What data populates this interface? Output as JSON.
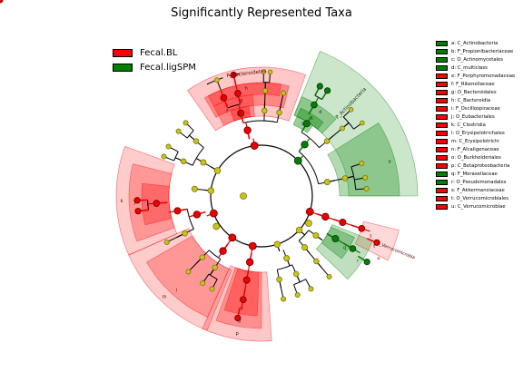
{
  "title": "Significantly Represented Taxa",
  "groups": [
    {
      "name": "Fecal.BL",
      "color": "#ff0000"
    },
    {
      "name": "Fecal.ligSPM",
      "color": "#008000"
    }
  ],
  "side_legend": [
    {
      "text": "a: C_Actinobacteria",
      "group": 1
    },
    {
      "text": "b: F_Propionibacteriaceae",
      "group": 1
    },
    {
      "text": "c: O_Actinomycetales",
      "group": 1
    },
    {
      "text": "d: C_multiclass",
      "group": 1
    },
    {
      "text": "e: F_Porphyromonadaceae",
      "group": 0
    },
    {
      "text": "f: F_Rikenellaceae",
      "group": 0
    },
    {
      "text": "g: O_Bacteroidales",
      "group": 0
    },
    {
      "text": "h: C_Bacteroidia",
      "group": 0
    },
    {
      "text": "i: F_Oscillospiraceae",
      "group": 0
    },
    {
      "text": "j: O_Eubacteriales",
      "group": 0
    },
    {
      "text": "k: C_Clostridia",
      "group": 0
    },
    {
      "text": "l: O_Erysipelotrichales",
      "group": 0
    },
    {
      "text": "m: C_Erysipelotrichi",
      "group": 0
    },
    {
      "text": "n: F_Alcaligenaceae",
      "group": 0
    },
    {
      "text": "o: O_Burkholderiales",
      "group": 0
    },
    {
      "text": "p: C_Betaproteobacteria",
      "group": 0
    },
    {
      "text": "q: F_Moraxellaceae",
      "group": 1
    },
    {
      "text": "r: O_Pseudomonadales",
      "group": 1
    },
    {
      "text": "s: F_Akkermansiaceae",
      "group": 0
    },
    {
      "text": "t: O_Verrucomicrobiales",
      "group": 0
    },
    {
      "text": "u: C_Verrucomicrobiae",
      "group": 0
    }
  ],
  "sector_labels": [
    {
      "text": "P_Bacteroidetes",
      "group": 0
    },
    {
      "text": "P_Actinobacteria",
      "group": 1
    },
    {
      "text": "P_Verrucomicrobia",
      "group": 0
    },
    {
      "text": "h",
      "group": 0
    },
    {
      "text": "g",
      "group": 0
    },
    {
      "text": "f",
      "group": 0
    },
    {
      "text": "e",
      "group": 0
    },
    {
      "text": "d",
      "group": 1
    },
    {
      "text": "c",
      "group": 1
    },
    {
      "text": "b",
      "group": 1
    },
    {
      "text": "a",
      "group": 1
    },
    {
      "text": "k",
      "group": 0
    },
    {
      "text": "j",
      "group": 0
    },
    {
      "text": "i",
      "group": 0
    },
    {
      "text": "m",
      "group": 0
    },
    {
      "text": "l",
      "group": 0
    },
    {
      "text": "p",
      "group": 0
    },
    {
      "text": "o",
      "group": 0
    },
    {
      "text": "n",
      "group": 0
    },
    {
      "text": "r",
      "group": 1
    },
    {
      "text": "q",
      "group": 1
    },
    {
      "text": "u",
      "group": 0
    },
    {
      "text": "t",
      "group": 0
    },
    {
      "text": "s",
      "group": 0
    }
  ]
}
